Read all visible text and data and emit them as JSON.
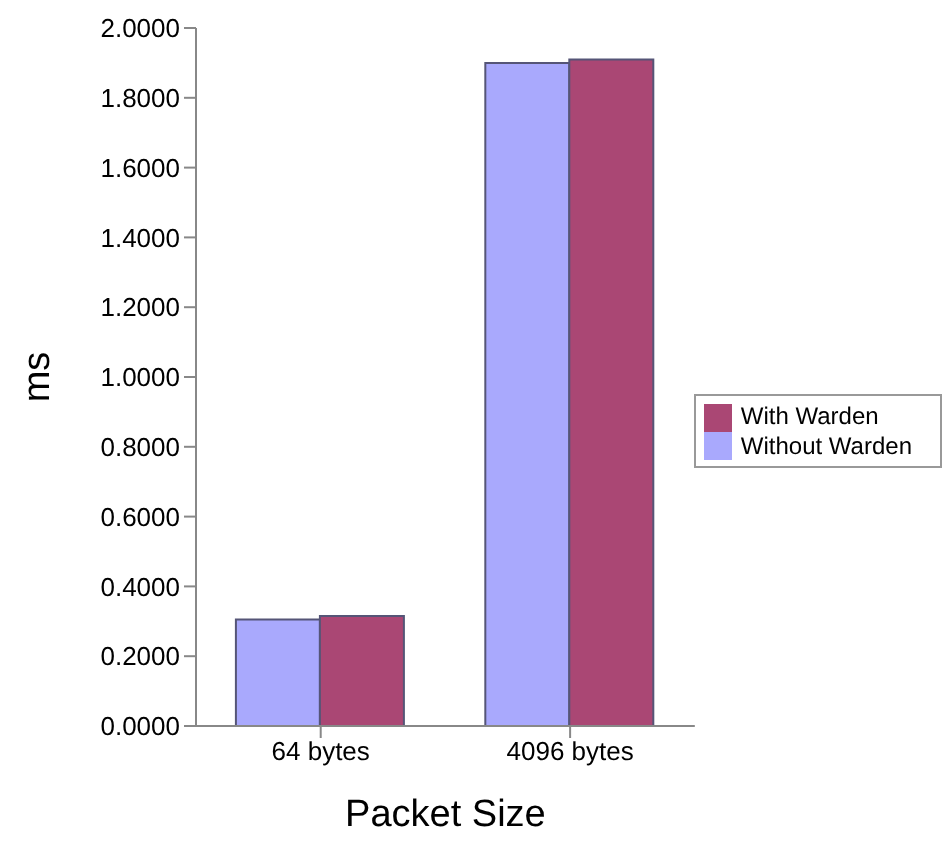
{
  "chart_data": {
    "type": "bar",
    "xlabel": "Packet Size",
    "ylabel": "ms",
    "categories": [
      "64 bytes",
      "4096 bytes"
    ],
    "series": [
      {
        "name": "Without Warden",
        "color": "#a9a9fd",
        "values": [
          0.305,
          1.9
        ]
      },
      {
        "name": "With Warden",
        "color": "#aa4774",
        "values": [
          0.315,
          1.91
        ]
      }
    ],
    "ylim": [
      0,
      2
    ],
    "yticks": [
      {
        "value": 0,
        "label": "0.0000"
      },
      {
        "value": 0.2,
        "label": "0.2000"
      },
      {
        "value": 0.4,
        "label": "0.4000"
      },
      {
        "value": 0.6,
        "label": "0.6000"
      },
      {
        "value": 0.8,
        "label": "0.8000"
      },
      {
        "value": 1,
        "label": "1.0000"
      },
      {
        "value": 1.2,
        "label": "1.2000"
      },
      {
        "value": 1.4,
        "label": "1.4000"
      },
      {
        "value": 1.6,
        "label": "1.6000"
      },
      {
        "value": 1.8,
        "label": "1.8000"
      },
      {
        "value": 2,
        "label": "2.0000"
      }
    ],
    "legend": "right",
    "grid": false
  }
}
